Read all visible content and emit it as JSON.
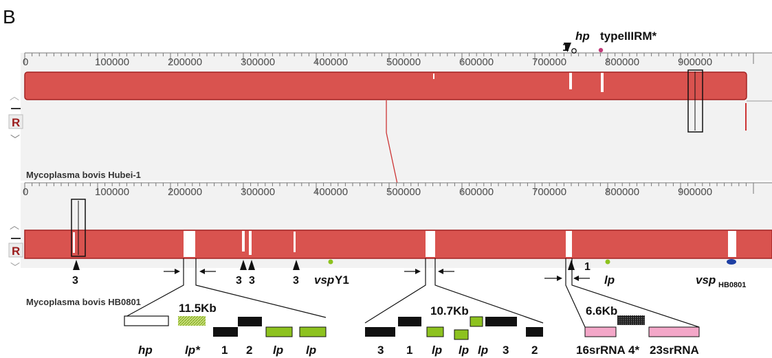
{
  "panel_label": "B",
  "axis_ticks": [
    "100000",
    "200000",
    "300000",
    "400000",
    "500000",
    "600000",
    "700000",
    "800000",
    "900000"
  ],
  "axis_zero": "0",
  "genomes": {
    "top": "Mycoplasma bovis Hubei-1",
    "bottom": "Mycoplasma bovis HB0801"
  },
  "track_buttons": {
    "reset": "R"
  },
  "top_annotations": {
    "count": "1",
    "hp": "hp",
    "typeIII": "typeIIIRM*"
  },
  "bottom_markers": {
    "a": "3",
    "b": "3",
    "c": "3",
    "d": "3",
    "e": "1"
  },
  "bottom_labels": {
    "vspY1_prefix": "vsp",
    "vspY1_suffix": "Y1",
    "lp": "lp",
    "vspHB_prefix": "vsp",
    "vspHB_sub": "HB0801"
  },
  "insertions": [
    {
      "size": "11.5Kb",
      "genes": [
        "hp",
        "lp*",
        "1",
        "2",
        "lp",
        "lp"
      ]
    },
    {
      "size": "10.7Kb",
      "genes": [
        "3",
        "1",
        "lp",
        "lp",
        "lp",
        "3",
        "2"
      ]
    },
    {
      "size": "6.6Kb",
      "genes": [
        "16srRNA",
        "4*",
        "23srRNA"
      ]
    }
  ],
  "colors": {
    "block": "#d9534f",
    "blockEdge": "#a32222",
    "green": "#8dc21f",
    "pink": "#f3a7c8",
    "panel": "#f2f2f2"
  }
}
